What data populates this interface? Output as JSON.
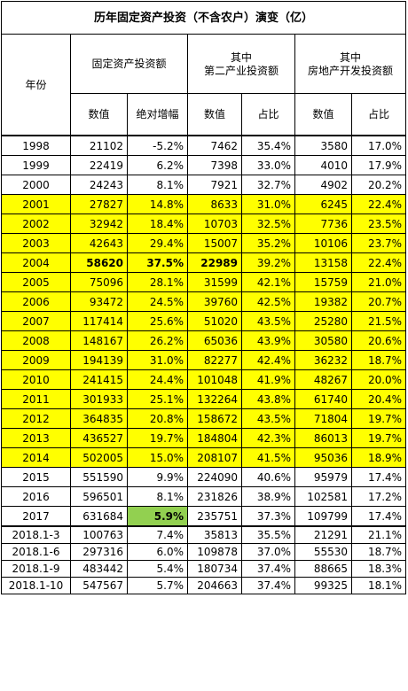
{
  "title": "历年固定资产投资（不含农户）演变（亿）",
  "header": {
    "year": "年份",
    "group1": "固定资产投资额",
    "group2_line1": "其中",
    "group2_line2": "第二产业投资额",
    "group3_line1": "其中",
    "group3_line2": "房地产开发投资额",
    "sub": [
      "数值",
      "绝对增幅",
      "数值",
      "占比",
      "数值",
      "占比"
    ]
  },
  "highlight_colors": {
    "yellow": "#ffff00",
    "green": "#92d050"
  },
  "rows": [
    {
      "year": "1998",
      "v": [
        "21102",
        "-5.2%",
        "7462",
        "35.4%",
        "3580",
        "17.0%"
      ],
      "style": "plain"
    },
    {
      "year": "1999",
      "v": [
        "22419",
        "6.2%",
        "7398",
        "33.0%",
        "4010",
        "17.9%"
      ],
      "style": "plain"
    },
    {
      "year": "2000",
      "v": [
        "24243",
        "8.1%",
        "7921",
        "32.7%",
        "4902",
        "20.2%"
      ],
      "style": "plain"
    },
    {
      "year": "2001",
      "v": [
        "27827",
        "14.8%",
        "8633",
        "31.0%",
        "6245",
        "22.4%"
      ],
      "style": "yellow"
    },
    {
      "year": "2002",
      "v": [
        "32942",
        "18.4%",
        "10703",
        "32.5%",
        "7736",
        "23.5%"
      ],
      "style": "yellow"
    },
    {
      "year": "2003",
      "v": [
        "42643",
        "29.4%",
        "15007",
        "35.2%",
        "10106",
        "23.7%"
      ],
      "style": "yellow"
    },
    {
      "year": "2004",
      "v": [
        "58620",
        "37.5%",
        "22989",
        "39.2%",
        "13158",
        "22.4%"
      ],
      "style": "yellow-bold"
    },
    {
      "year": "2005",
      "v": [
        "75096",
        "28.1%",
        "31599",
        "42.1%",
        "15759",
        "21.0%"
      ],
      "style": "yellow"
    },
    {
      "year": "2006",
      "v": [
        "93472",
        "24.5%",
        "39760",
        "42.5%",
        "19382",
        "20.7%"
      ],
      "style": "yellow"
    },
    {
      "year": "2007",
      "v": [
        "117414",
        "25.6%",
        "51020",
        "43.5%",
        "25280",
        "21.5%"
      ],
      "style": "yellow"
    },
    {
      "year": "2008",
      "v": [
        "148167",
        "26.2%",
        "65036",
        "43.9%",
        "30580",
        "20.6%"
      ],
      "style": "yellow"
    },
    {
      "year": "2009",
      "v": [
        "194139",
        "31.0%",
        "82277",
        "42.4%",
        "36232",
        "18.7%"
      ],
      "style": "yellow"
    },
    {
      "year": "2010",
      "v": [
        "241415",
        "24.4%",
        "101048",
        "41.9%",
        "48267",
        "20.0%"
      ],
      "style": "yellow"
    },
    {
      "year": "2011",
      "v": [
        "301933",
        "25.1%",
        "132264",
        "43.8%",
        "61740",
        "20.4%"
      ],
      "style": "yellow"
    },
    {
      "year": "2012",
      "v": [
        "364835",
        "20.8%",
        "158672",
        "43.5%",
        "71804",
        "19.7%"
      ],
      "style": "yellow"
    },
    {
      "year": "2013",
      "v": [
        "436527",
        "19.7%",
        "184804",
        "42.3%",
        "86013",
        "19.7%"
      ],
      "style": "yellow"
    },
    {
      "year": "2014",
      "v": [
        "502005",
        "15.0%",
        "208107",
        "41.5%",
        "95036",
        "18.9%"
      ],
      "style": "yellow"
    },
    {
      "year": "2015",
      "v": [
        "551590",
        "9.9%",
        "224090",
        "40.6%",
        "95979",
        "17.4%"
      ],
      "style": "plain"
    },
    {
      "year": "2016",
      "v": [
        "596501",
        "8.1%",
        "231826",
        "38.9%",
        "102581",
        "17.2%"
      ],
      "style": "plain"
    },
    {
      "year": "2017",
      "v": [
        "631684",
        "5.9%",
        "235751",
        "37.3%",
        "109799",
        "17.4%"
      ],
      "style": "green-growth"
    },
    {
      "year": "2018.1-3",
      "v": [
        "100763",
        "7.4%",
        "35813",
        "35.5%",
        "21291",
        "21.1%"
      ],
      "style": "plain"
    },
    {
      "year": "2018.1-6",
      "v": [
        "297316",
        "6.0%",
        "109878",
        "37.0%",
        "55530",
        "18.7%"
      ],
      "style": "plain"
    },
    {
      "year": "2018.1-9",
      "v": [
        "483442",
        "5.4%",
        "180734",
        "37.4%",
        "88665",
        "18.3%"
      ],
      "style": "plain"
    },
    {
      "year": "2018.1-10",
      "v": [
        "547567",
        "5.7%",
        "204663",
        "37.4%",
        "99325",
        "18.1%"
      ],
      "style": "plain"
    }
  ]
}
